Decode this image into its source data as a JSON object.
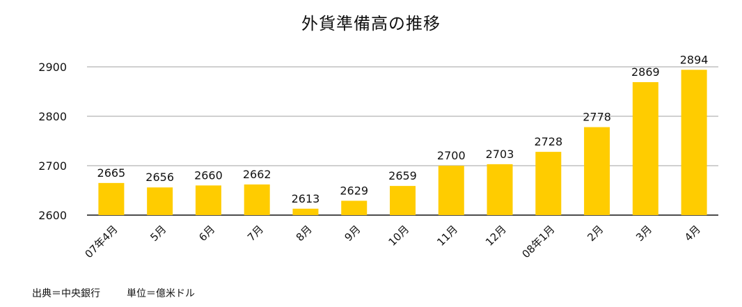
{
  "chart_data": {
    "type": "bar",
    "title": "外貨準備高の推移",
    "categories": [
      "07年4月",
      "5月",
      "6月",
      "7月",
      "8月",
      "9月",
      "10月",
      "11月",
      "12月",
      "08年1月",
      "2月",
      "3月",
      "4月"
    ],
    "values": [
      2665,
      2656,
      2660,
      2662,
      2613,
      2629,
      2659,
      2700,
      2703,
      2728,
      2778,
      2869,
      2894
    ],
    "ylim": [
      2600,
      2900
    ],
    "yticks": [
      2600,
      2700,
      2800,
      2900
    ],
    "grid": true,
    "bar_color": "#FFCC00"
  },
  "footer": {
    "source": "出典＝中央銀行",
    "unit": "単位＝億米ドル"
  }
}
